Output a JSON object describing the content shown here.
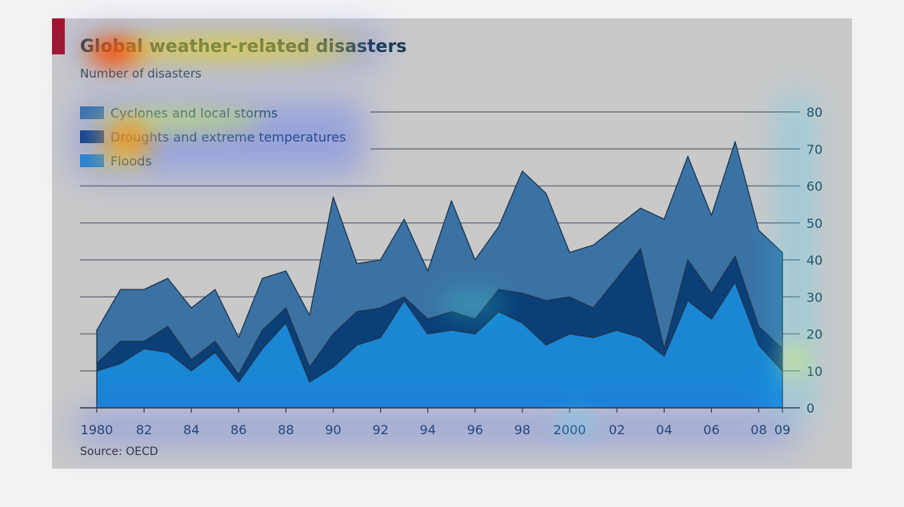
{
  "chart_data": {
    "type": "area",
    "title": "Global weather-related disasters",
    "subtitle": "Number of disasters",
    "source": "Source: OECD",
    "stacked": true,
    "x": [
      1980,
      1981,
      1982,
      1983,
      1984,
      1985,
      1986,
      1987,
      1988,
      1989,
      1990,
      1991,
      1992,
      1993,
      1994,
      1995,
      1996,
      1997,
      1998,
      1999,
      2000,
      2001,
      2002,
      2003,
      2004,
      2005,
      2006,
      2007,
      2008,
      2009
    ],
    "x_tick_labels": [
      {
        "x": 1980,
        "label": "1980"
      },
      {
        "x": 1982,
        "label": "82"
      },
      {
        "x": 1984,
        "label": "84"
      },
      {
        "x": 1986,
        "label": "86"
      },
      {
        "x": 1988,
        "label": "88"
      },
      {
        "x": 1990,
        "label": "90"
      },
      {
        "x": 1992,
        "label": "92"
      },
      {
        "x": 1994,
        "label": "94"
      },
      {
        "x": 1996,
        "label": "96"
      },
      {
        "x": 1998,
        "label": "98"
      },
      {
        "x": 2000,
        "label": "2000"
      },
      {
        "x": 2002,
        "label": "02"
      },
      {
        "x": 2004,
        "label": "04"
      },
      {
        "x": 2006,
        "label": "06"
      },
      {
        "x": 2008,
        "label": "08"
      },
      {
        "x": 2009,
        "label": "09"
      }
    ],
    "y_ticks": [
      0,
      10,
      20,
      30,
      40,
      50,
      60,
      70,
      80
    ],
    "ylim": [
      0,
      80
    ],
    "y_axis_side": "right",
    "grid": true,
    "legend_position": "top-left",
    "series": [
      {
        "name": "Floods",
        "color": "#1a86d4",
        "values": [
          10,
          12,
          16,
          15,
          10,
          15,
          7,
          16,
          23,
          7,
          11,
          17,
          19,
          29,
          20,
          21,
          20,
          26,
          23,
          17,
          20,
          19,
          21,
          19,
          14,
          29,
          24,
          34,
          17,
          10
        ]
      },
      {
        "name": "Droughts and extreme temperatures",
        "color": "#0b3f78",
        "values": [
          2,
          6,
          2,
          7,
          3,
          3,
          2,
          5,
          4,
          4,
          9,
          9,
          8,
          1,
          4,
          5,
          4,
          6,
          8,
          12,
          10,
          8,
          14,
          24,
          2,
          11,
          7,
          7,
          5,
          6
        ]
      },
      {
        "name": "Cyclones and local storms",
        "color": "#3b72a4",
        "values": [
          9,
          14,
          14,
          13,
          14,
          14,
          10,
          14,
          10,
          14,
          37,
          13,
          13,
          21,
          13,
          30,
          16,
          17,
          33,
          29,
          12,
          17,
          14,
          11,
          35,
          28,
          21,
          31,
          26,
          26
        ]
      }
    ],
    "legend_order": [
      "Cyclones and local storms",
      "Droughts and extreme temperatures",
      "Floods"
    ]
  },
  "accent_color": "#a3162d",
  "panel_color": "#c9c9c9"
}
